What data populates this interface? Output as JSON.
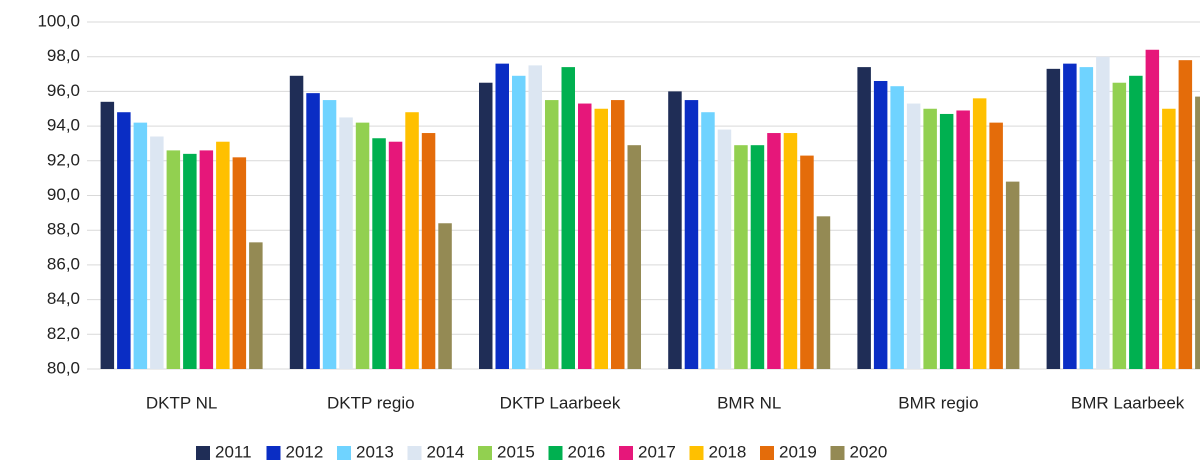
{
  "chart_data": {
    "type": "bar",
    "categories": [
      "DKTP NL",
      "DKTP regio",
      "DKTP Laarbeek",
      "BMR NL",
      "BMR regio",
      "BMR Laarbeek"
    ],
    "series": [
      {
        "name": "2011",
        "color": "#1f2d56",
        "values": [
          95.4,
          96.9,
          96.5,
          96.0,
          97.4,
          97.3
        ]
      },
      {
        "name": "2012",
        "color": "#0a2dc4",
        "values": [
          94.8,
          95.9,
          97.6,
          95.5,
          96.6,
          97.6
        ]
      },
      {
        "name": "2013",
        "color": "#6fd3ff",
        "values": [
          94.2,
          95.5,
          96.9,
          94.8,
          96.3,
          97.4
        ]
      },
      {
        "name": "2014",
        "color": "#dce6f2",
        "values": [
          93.4,
          94.5,
          97.5,
          93.8,
          95.3,
          98.0
        ]
      },
      {
        "name": "2015",
        "color": "#92d050",
        "values": [
          92.6,
          94.2,
          95.5,
          92.9,
          95.0,
          96.5
        ]
      },
      {
        "name": "2016",
        "color": "#00b050",
        "values": [
          92.4,
          93.3,
          97.4,
          92.9,
          94.7,
          96.9
        ]
      },
      {
        "name": "2017",
        "color": "#e6177a",
        "values": [
          92.6,
          93.1,
          95.3,
          93.6,
          94.9,
          98.4
        ]
      },
      {
        "name": "2018",
        "color": "#ffc000",
        "values": [
          93.1,
          94.8,
          95.0,
          93.6,
          95.6,
          95.0
        ]
      },
      {
        "name": "2019",
        "color": "#e46c0a",
        "values": [
          92.2,
          93.6,
          95.5,
          92.3,
          94.2,
          97.8
        ]
      },
      {
        "name": "2020",
        "color": "#948a54",
        "values": [
          87.3,
          88.4,
          92.9,
          88.8,
          90.8,
          95.7
        ]
      }
    ],
    "ylim": [
      80,
      100
    ],
    "yticks": [
      {
        "value": 80,
        "label": "80,0"
      },
      {
        "value": 82,
        "label": "82,0"
      },
      {
        "value": 84,
        "label": "84,0"
      },
      {
        "value": 86,
        "label": "86,0"
      },
      {
        "value": 88,
        "label": "88,0"
      },
      {
        "value": 90,
        "label": "90,0"
      },
      {
        "value": 92,
        "label": "92,0"
      },
      {
        "value": 94,
        "label": "94,0"
      },
      {
        "value": 96,
        "label": "96,0"
      },
      {
        "value": 98,
        "label": "98,0"
      },
      {
        "value": 100,
        "label": "100,0"
      }
    ],
    "grid": true,
    "legend": "bottom"
  }
}
